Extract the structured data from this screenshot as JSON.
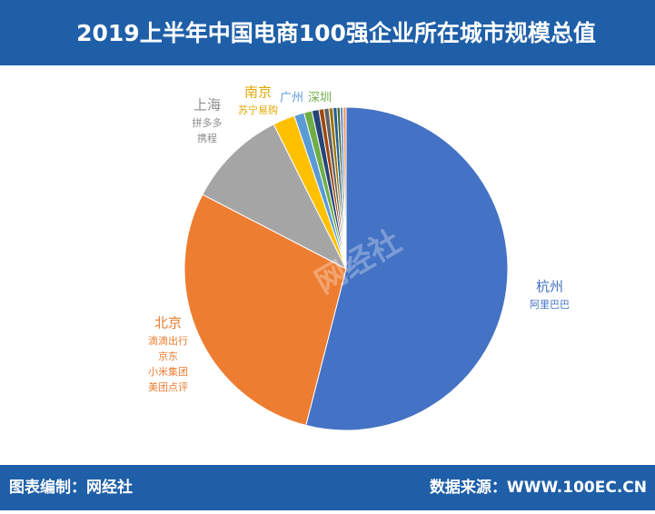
{
  "chart_data": {
    "type": "pie",
    "title": "2019上半年中国电商100强企业所在城市规模总值",
    "categories": [
      "杭州",
      "北京",
      "上海",
      "南京",
      "广州",
      "深圳",
      null,
      null,
      null,
      null,
      null,
      null,
      null,
      null
    ],
    "companies": [
      [
        "阿里巴巴"
      ],
      [
        "滴滴出行",
        "京东",
        "小米集团",
        "美团点评"
      ],
      [
        "拼多多",
        "携程"
      ],
      [
        "苏宁易购"
      ],
      null,
      null,
      null,
      null,
      null,
      null,
      null,
      null,
      null,
      null
    ],
    "values": [
      54,
      28.6,
      10,
      2.2,
      1,
      0.8,
      0.7,
      0.5,
      0.5,
      0.4,
      0.4,
      0.3,
      0.3,
      0.3
    ],
    "colors": [
      "#4472c4",
      "#ed7d31",
      "#a5a5a5",
      "#ffc000",
      "#5b9bd5",
      "#70ad47",
      "#264478",
      "#9e480e",
      "#636363",
      "#997300",
      "#255e91",
      "#43682b",
      "#698ed0",
      "#f1975a"
    ],
    "watermark": "网经社"
  },
  "footer": {
    "left": "图表编制：网经社",
    "right": "数据来源：WWW.100EC.CN"
  }
}
